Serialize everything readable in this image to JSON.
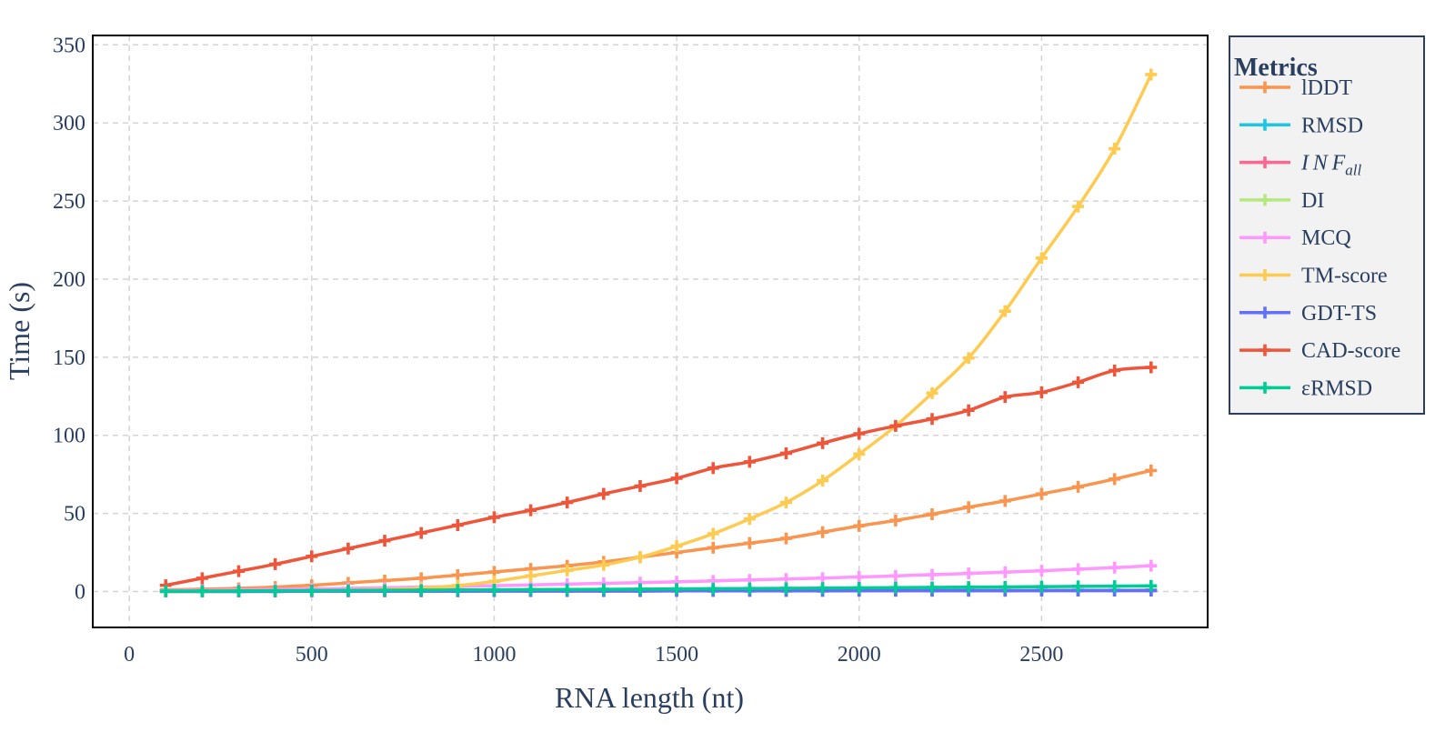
{
  "chart_data": {
    "type": "line",
    "title": "",
    "xlabel": "RNA length (nt)",
    "ylabel": "Time (s)",
    "xlim": [
      -100,
      2955
    ],
    "ylim": [
      -23,
      356
    ],
    "xticks": [
      0,
      500,
      1000,
      1500,
      2000,
      2500
    ],
    "yticks": [
      0,
      50,
      100,
      150,
      200,
      250,
      300,
      350
    ],
    "grid": true,
    "grid_style": "dashed",
    "marker": "cross",
    "line_shape": "spline",
    "legend": {
      "title": "Metrics",
      "placement": "right"
    },
    "x": [
      100,
      200,
      300,
      400,
      500,
      600,
      700,
      800,
      900,
      1000,
      1100,
      1200,
      1300,
      1400,
      1500,
      1600,
      1700,
      1800,
      1900,
      2000,
      2100,
      2200,
      2300,
      2400,
      2500,
      2600,
      2700,
      2800
    ],
    "series": [
      {
        "name": "lDDT",
        "color": "#f9954e",
        "values": [
          1.0,
          1.5,
          2.0,
          2.8,
          4.0,
          5.5,
          7.0,
          8.5,
          10.5,
          12.5,
          14.5,
          16.5,
          19.0,
          22.0,
          25.0,
          28.0,
          31.0,
          34.0,
          38.0,
          42.0,
          45.5,
          49.5,
          54.0,
          58.0,
          62.5,
          67.0,
          72.0,
          77.5
        ]
      },
      {
        "name": "RMSD",
        "color": "#1cc6e6",
        "values": [
          0.1,
          0.1,
          0.1,
          0.2,
          0.2,
          0.2,
          0.2,
          0.3,
          0.3,
          0.3,
          0.3,
          0.4,
          0.4,
          0.4,
          0.5,
          0.5,
          0.5,
          0.5,
          0.6,
          0.6,
          0.6,
          0.7,
          0.7,
          0.7,
          0.8,
          0.8,
          0.8,
          0.9
        ]
      },
      {
        "name": "INF",
        "name_subscript": "all",
        "color": "#fe6692",
        "values": [
          0.1,
          0.1,
          0.1,
          0.1,
          0.2,
          0.2,
          0.2,
          0.2,
          0.2,
          0.3,
          0.3,
          0.3,
          0.3,
          0.3,
          0.4,
          0.4,
          0.4,
          0.4,
          0.4,
          0.5,
          0.5,
          0.5,
          0.5,
          0.5,
          0.6,
          0.6,
          0.6,
          0.6
        ]
      },
      {
        "name": "DI",
        "color": "#b6e880",
        "values": [
          0.1,
          0.1,
          0.1,
          0.1,
          0.2,
          0.2,
          0.2,
          0.2,
          0.2,
          0.3,
          0.3,
          0.3,
          0.3,
          0.3,
          0.4,
          0.4,
          0.4,
          0.4,
          0.4,
          0.5,
          0.5,
          0.5,
          0.5,
          0.5,
          0.6,
          0.6,
          0.6,
          0.6
        ]
      },
      {
        "name": "MCQ",
        "color": "#ff97ff",
        "values": [
          0.5,
          0.8,
          1.0,
          1.3,
          1.7,
          2.0,
          2.4,
          2.8,
          3.2,
          3.7,
          4.2,
          4.7,
          5.2,
          5.7,
          6.2,
          6.8,
          7.4,
          8.0,
          8.6,
          9.3,
          10.0,
          10.8,
          11.6,
          12.4,
          13.3,
          14.3,
          15.3,
          16.5
        ]
      },
      {
        "name": "TM-score",
        "color": "#fecb52",
        "values": [
          0.0,
          0.1,
          0.2,
          0.3,
          0.5,
          0.8,
          1.3,
          2.2,
          3.8,
          6.5,
          10.0,
          13.5,
          17.0,
          22.0,
          29.0,
          37.0,
          46.5,
          57.0,
          71.0,
          88.0,
          106.0,
          127.0,
          149.5,
          179.5,
          213.5,
          246.5,
          283.5,
          331.0
        ]
      },
      {
        "name": "GDT-TS",
        "color": "#636efa",
        "values": [
          0.1,
          0.1,
          0.1,
          0.1,
          0.2,
          0.2,
          0.2,
          0.2,
          0.2,
          0.3,
          0.3,
          0.3,
          0.3,
          0.3,
          0.4,
          0.4,
          0.4,
          0.4,
          0.4,
          0.5,
          0.5,
          0.5,
          0.5,
          0.5,
          0.6,
          0.6,
          0.6,
          0.6
        ]
      },
      {
        "name": "CAD-score",
        "color": "#ef553b",
        "values": [
          4.0,
          8.5,
          13.0,
          17.5,
          22.5,
          27.5,
          32.5,
          37.5,
          42.5,
          47.5,
          52.0,
          57.0,
          62.5,
          67.5,
          72.5,
          79.0,
          83.0,
          88.5,
          95.0,
          101.0,
          106.0,
          110.5,
          116.0,
          124.5,
          127.5,
          134.0,
          141.5,
          143.5
        ]
      },
      {
        "name": "εRMSD",
        "color": "#00cc96",
        "values": [
          0.2,
          0.3,
          0.4,
          0.5,
          0.6,
          0.7,
          0.8,
          0.9,
          1.0,
          1.1,
          1.2,
          1.3,
          1.4,
          1.5,
          1.7,
          1.8,
          1.9,
          2.0,
          2.2,
          2.3,
          2.5,
          2.6,
          2.8,
          2.9,
          3.1,
          3.3,
          3.4,
          3.6
        ]
      }
    ]
  }
}
